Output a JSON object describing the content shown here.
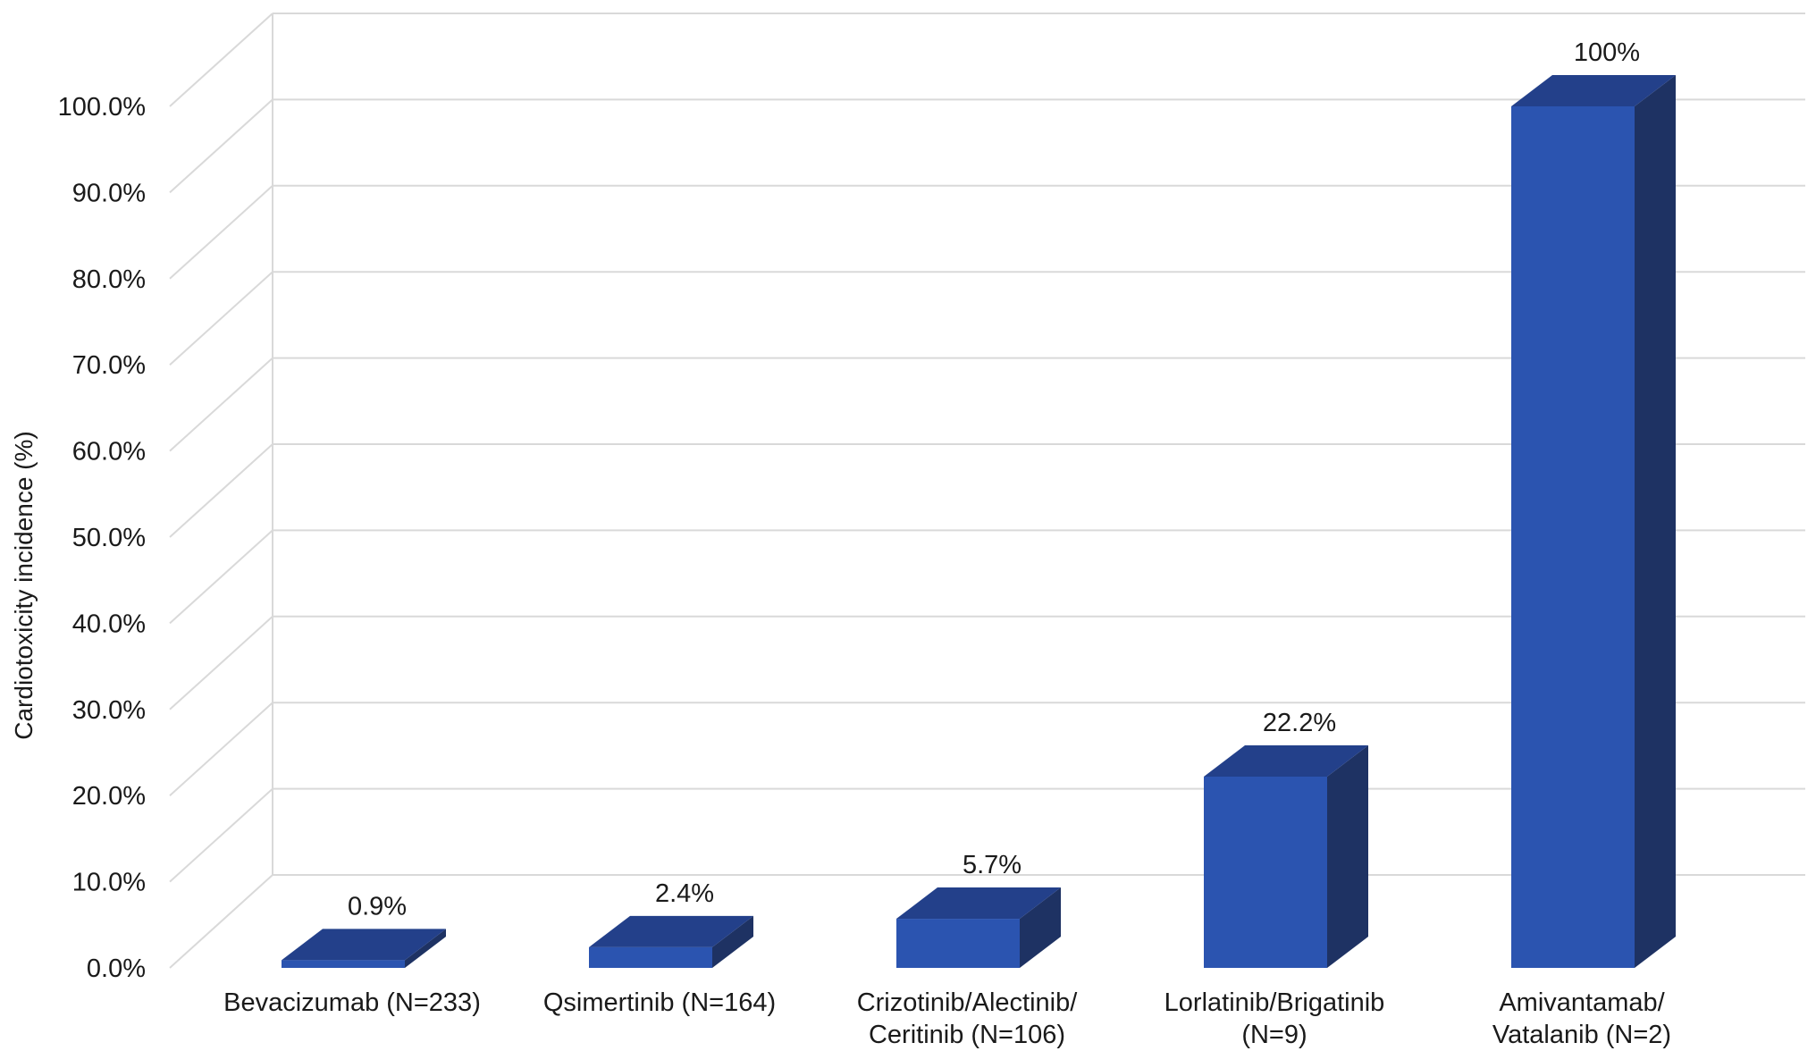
{
  "chart_data": {
    "type": "bar",
    "ylabel": "Cardiotoxicity incidence (%)",
    "ylim": [
      0,
      100
    ],
    "y_ticks": [
      "0.0%",
      "10.0%",
      "20.0%",
      "30.0%",
      "40.0%",
      "50.0%",
      "60.0%",
      "70.0%",
      "80.0%",
      "90.0%",
      "100.0%"
    ],
    "categories": [
      [
        "Bevacizumab (N=233)"
      ],
      [
        "Qsimertinib (N=164)"
      ],
      [
        "Crizotinib/Alectinib/",
        "Ceritinib (N=106)"
      ],
      [
        "Lorlatinib/Brigatinib",
        "(N=9)"
      ],
      [
        "Amivantamab/",
        "Vatalanib (N=2)"
      ]
    ],
    "values": [
      0.9,
      2.4,
      5.7,
      22.2,
      100
    ],
    "data_labels": [
      "0.9%",
      "2.4%",
      "5.7%",
      "22.2%",
      "100%"
    ],
    "grid": true,
    "style": "3d-column",
    "colors": {
      "front": "#2b54b0",
      "top": "#23408a",
      "side": "#1e3263",
      "grid": "#d9d9d9"
    }
  }
}
